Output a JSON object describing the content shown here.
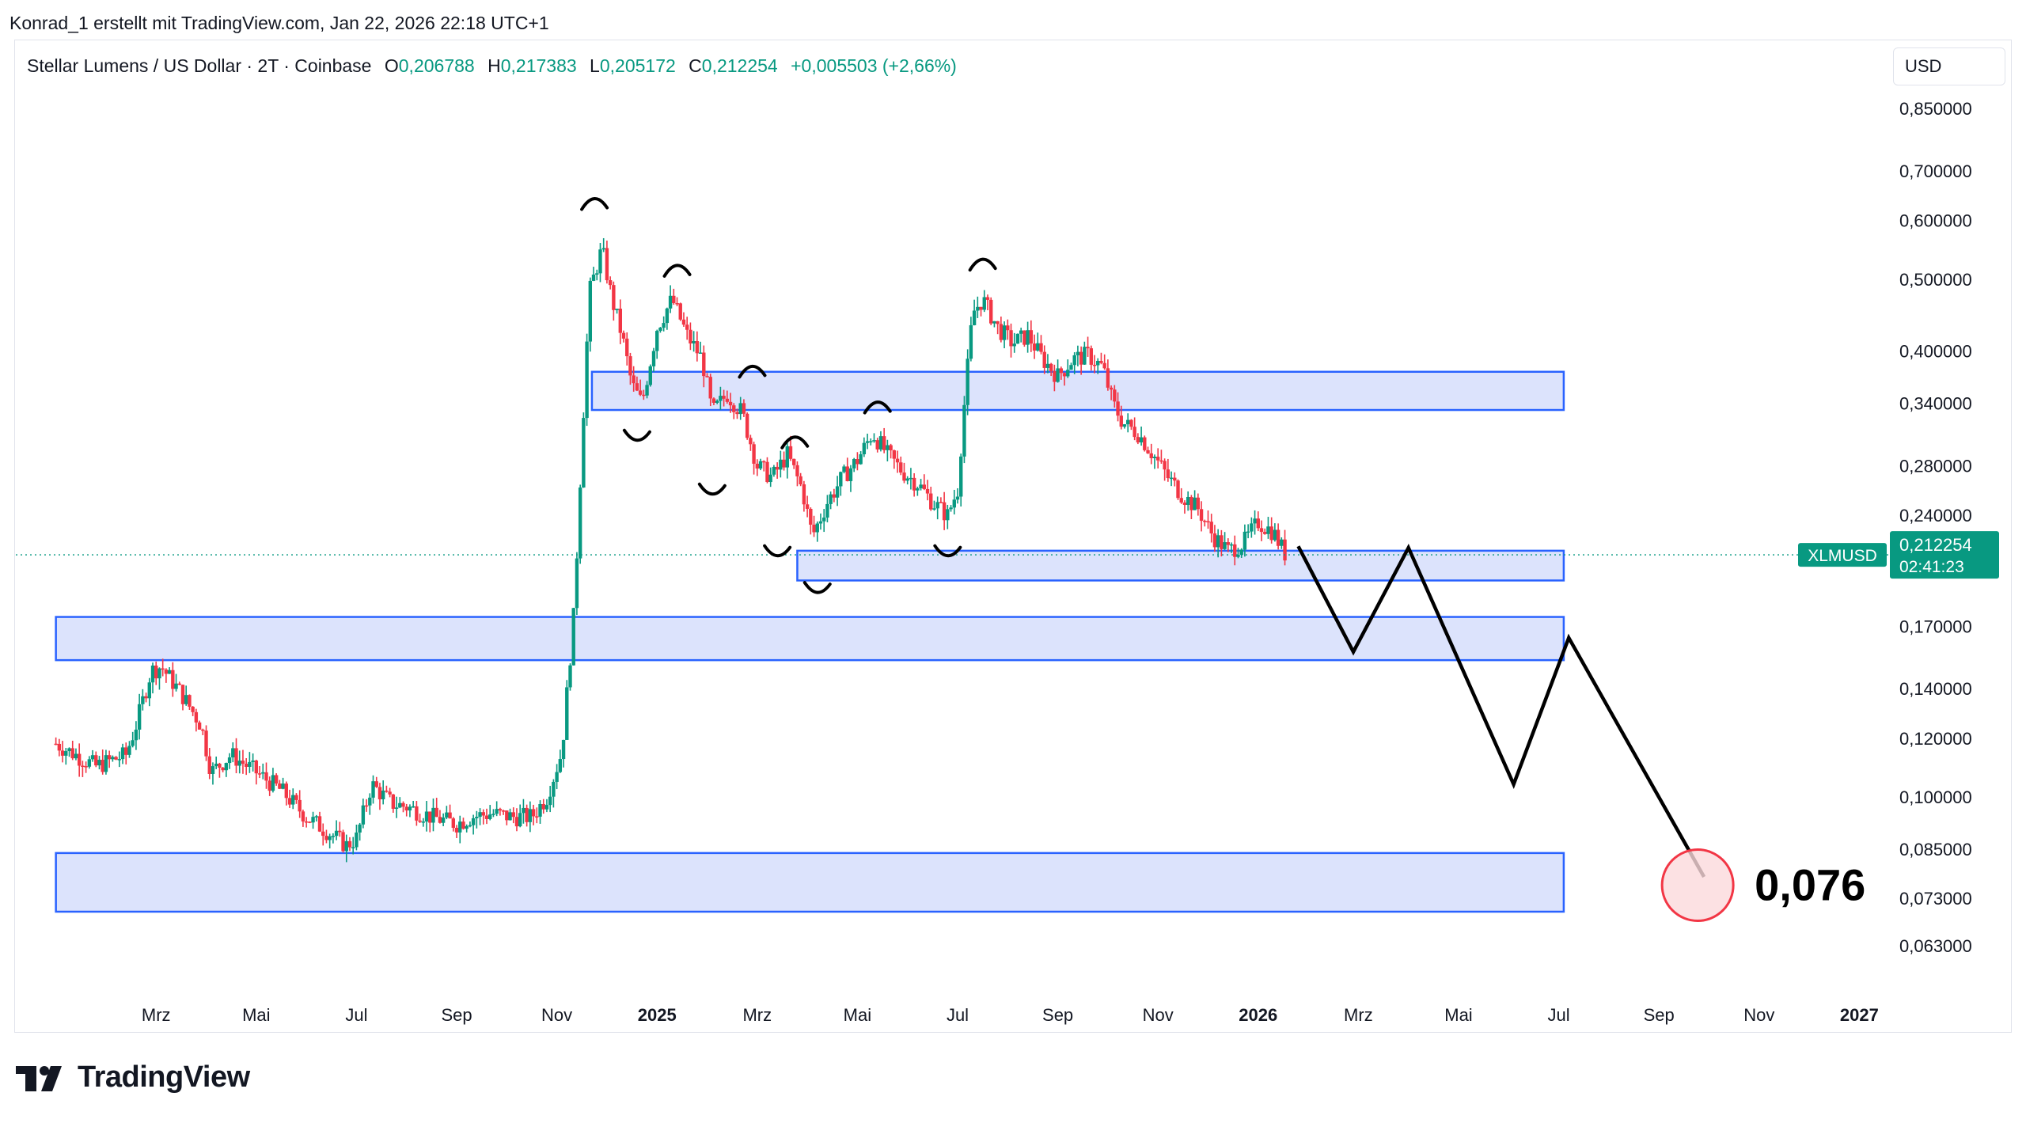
{
  "attribution": "Konrad_1 erstellt mit TradingView.com, Jan 22, 2026 22:18 UTC+1",
  "legend": {
    "symbol": "Stellar Lumens / US Dollar · 2T · Coinbase",
    "o_label": "O",
    "o_value": "0,206788",
    "h_label": "H",
    "h_value": "0,217383",
    "l_label": "L",
    "l_value": "0,205172",
    "c_label": "C",
    "c_value": "0,212254",
    "change": "+0,005503 (+2,66%)"
  },
  "currency_button": "USD",
  "ticker_badge": "XLMUSD",
  "price_badge": {
    "price": "0,212254",
    "countdown": "02:41:23"
  },
  "target_label": "0,076",
  "logo_text": "TradingView",
  "colors": {
    "up": "#089981",
    "down": "#f23645",
    "zone_fill": "#d6defc",
    "zone_border": "#2962ff"
  },
  "chart_data": {
    "type": "candlestick",
    "title": "Stellar Lumens / US Dollar · 2T · Coinbase",
    "y_scale": "log",
    "ylim": [
      0.055,
      0.92
    ],
    "y_ticks": [
      {
        "value": 0.85,
        "label": "0,850000"
      },
      {
        "value": 0.7,
        "label": "0,700000"
      },
      {
        "value": 0.6,
        "label": "0,600000"
      },
      {
        "value": 0.5,
        "label": "0,500000"
      },
      {
        "value": 0.4,
        "label": "0,400000"
      },
      {
        "value": 0.34,
        "label": "0,340000"
      },
      {
        "value": 0.28,
        "label": "0,280000"
      },
      {
        "value": 0.24,
        "label": "0,240000"
      },
      {
        "value": 0.17,
        "label": "0,170000"
      },
      {
        "value": 0.14,
        "label": "0,140000"
      },
      {
        "value": 0.12,
        "label": "0,120000"
      },
      {
        "value": 0.1,
        "label": "0,100000"
      },
      {
        "value": 0.085,
        "label": "0,085000"
      },
      {
        "value": 0.073,
        "label": "0,073000"
      },
      {
        "value": 0.063,
        "label": "0,063000"
      }
    ],
    "x_ticks": [
      {
        "t": 2.0,
        "label": "Mrz",
        "bold": false
      },
      {
        "t": 4.0,
        "label": "Mai",
        "bold": false
      },
      {
        "t": 6.0,
        "label": "Jul",
        "bold": false
      },
      {
        "t": 8.0,
        "label": "Sep",
        "bold": false
      },
      {
        "t": 10.0,
        "label": "Nov",
        "bold": false
      },
      {
        "t": 12.0,
        "label": "2025",
        "bold": true
      },
      {
        "t": 14.0,
        "label": "Mrz",
        "bold": false
      },
      {
        "t": 16.0,
        "label": "Mai",
        "bold": false
      },
      {
        "t": 18.0,
        "label": "Jul",
        "bold": false
      },
      {
        "t": 20.0,
        "label": "Sep",
        "bold": false
      },
      {
        "t": 22.0,
        "label": "Nov",
        "bold": false
      },
      {
        "t": 24.0,
        "label": "2026",
        "bold": true
      },
      {
        "t": 26.0,
        "label": "Mrz",
        "bold": false
      },
      {
        "t": 28.0,
        "label": "Mai",
        "bold": false
      },
      {
        "t": 30.0,
        "label": "Jul",
        "bold": false
      },
      {
        "t": 32.0,
        "label": "Sep",
        "bold": false
      },
      {
        "t": 34.0,
        "label": "Nov",
        "bold": false
      },
      {
        "t": 36.0,
        "label": "2027",
        "bold": true
      }
    ],
    "x_unit": "months since 2024-01-01",
    "last_price": 0.212254,
    "price_path": [
      [
        0.0,
        0.118
      ],
      [
        0.8,
        0.11
      ],
      [
        1.4,
        0.114
      ],
      [
        1.6,
        0.125
      ],
      [
        1.9,
        0.148
      ],
      [
        2.1,
        0.15
      ],
      [
        2.5,
        0.138
      ],
      [
        2.9,
        0.125
      ],
      [
        3.1,
        0.108
      ],
      [
        3.5,
        0.114
      ],
      [
        4.0,
        0.108
      ],
      [
        4.5,
        0.102
      ],
      [
        5.0,
        0.094
      ],
      [
        5.4,
        0.09
      ],
      [
        5.8,
        0.086
      ],
      [
        6.0,
        0.088
      ],
      [
        6.3,
        0.104
      ],
      [
        6.7,
        0.098
      ],
      [
        7.0,
        0.097
      ],
      [
        7.5,
        0.094
      ],
      [
        8.0,
        0.092
      ],
      [
        8.3,
        0.094
      ],
      [
        8.7,
        0.095
      ],
      [
        9.1,
        0.094
      ],
      [
        9.5,
        0.094
      ],
      [
        9.8,
        0.1
      ],
      [
        10.1,
        0.115
      ],
      [
        10.35,
        0.18
      ],
      [
        10.5,
        0.3
      ],
      [
        10.65,
        0.48
      ],
      [
        10.9,
        0.55
      ],
      [
        11.1,
        0.47
      ],
      [
        11.3,
        0.42
      ],
      [
        11.5,
        0.36
      ],
      [
        11.7,
        0.34
      ],
      [
        12.0,
        0.43
      ],
      [
        12.3,
        0.47
      ],
      [
        12.6,
        0.42
      ],
      [
        12.9,
        0.39
      ],
      [
        13.1,
        0.33
      ],
      [
        13.4,
        0.35
      ],
      [
        13.7,
        0.33
      ],
      [
        14.0,
        0.28
      ],
      [
        14.3,
        0.27
      ],
      [
        14.6,
        0.29
      ],
      [
        14.9,
        0.26
      ],
      [
        15.1,
        0.225
      ],
      [
        15.4,
        0.25
      ],
      [
        15.7,
        0.27
      ],
      [
        16.0,
        0.285
      ],
      [
        16.3,
        0.31
      ],
      [
        16.6,
        0.29
      ],
      [
        16.9,
        0.275
      ],
      [
        17.2,
        0.265
      ],
      [
        17.5,
        0.25
      ],
      [
        17.8,
        0.24
      ],
      [
        18.0,
        0.26
      ],
      [
        18.15,
        0.35
      ],
      [
        18.3,
        0.45
      ],
      [
        18.5,
        0.47
      ],
      [
        18.8,
        0.43
      ],
      [
        19.1,
        0.41
      ],
      [
        19.4,
        0.42
      ],
      [
        19.7,
        0.39
      ],
      [
        20.0,
        0.37
      ],
      [
        20.3,
        0.39
      ],
      [
        20.6,
        0.395
      ],
      [
        20.9,
        0.38
      ],
      [
        21.1,
        0.34
      ],
      [
        21.3,
        0.32
      ],
      [
        21.6,
        0.31
      ],
      [
        21.9,
        0.29
      ],
      [
        22.2,
        0.27
      ],
      [
        22.5,
        0.255
      ],
      [
        22.8,
        0.245
      ],
      [
        23.1,
        0.225
      ],
      [
        23.4,
        0.215
      ],
      [
        23.7,
        0.22
      ],
      [
        24.0,
        0.235
      ],
      [
        24.3,
        0.228
      ],
      [
        24.55,
        0.212
      ]
    ],
    "zones": [
      {
        "name": "resistance-zone",
        "t_start": 10.7,
        "t_end": 30.1,
        "top": 0.375,
        "bottom": 0.333
      },
      {
        "name": "current-support-zone",
        "t_start": 14.8,
        "t_end": 30.1,
        "top": 0.215,
        "bottom": 0.196
      },
      {
        "name": "mid-support-zone",
        "t_start": 0.0,
        "t_end": 30.1,
        "top": 0.175,
        "bottom": 0.153
      },
      {
        "name": "lower-support-zone",
        "t_start": 0.0,
        "t_end": 30.1,
        "top": 0.084,
        "bottom": 0.07
      }
    ],
    "projection": [
      [
        24.8,
        0.218
      ],
      [
        25.9,
        0.157
      ],
      [
        27.0,
        0.217
      ],
      [
        29.1,
        0.104
      ],
      [
        30.2,
        0.164
      ],
      [
        32.9,
        0.078
      ]
    ],
    "target": {
      "t": 32.9,
      "value": 0.076,
      "label": "0,076"
    },
    "pattern_marks": [
      {
        "t": 10.75,
        "value": 0.64,
        "side": "top"
      },
      {
        "t": 11.6,
        "value": 0.305,
        "side": "bottom"
      },
      {
        "t": 12.4,
        "value": 0.52,
        "side": "top"
      },
      {
        "t": 13.1,
        "value": 0.258,
        "side": "bottom"
      },
      {
        "t": 13.9,
        "value": 0.38,
        "side": "top"
      },
      {
        "t": 14.4,
        "value": 0.213,
        "side": "bottom"
      },
      {
        "t": 14.75,
        "value": 0.305,
        "side": "top"
      },
      {
        "t": 15.2,
        "value": 0.19,
        "side": "bottom"
      },
      {
        "t": 16.4,
        "value": 0.34,
        "side": "top"
      },
      {
        "t": 17.8,
        "value": 0.213,
        "side": "bottom"
      },
      {
        "t": 18.5,
        "value": 0.53,
        "side": "top"
      }
    ]
  }
}
